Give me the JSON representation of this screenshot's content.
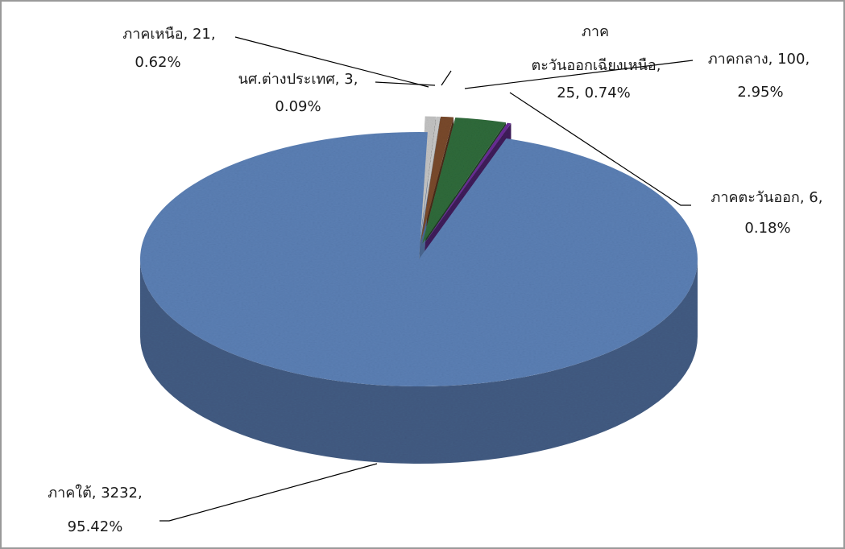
{
  "chart_data": {
    "type": "pie",
    "style": "3d-exploded",
    "title": "",
    "categories": [
      "ภาคใต้",
      "ภาคเหนือ",
      "นศ.ต่างประเทศ",
      "ภาคตะวันออกเฉียงเหนือ",
      "ภาคกลาง",
      "ภาคตะวันออก"
    ],
    "values": [
      3232,
      21,
      3,
      25,
      100,
      6
    ],
    "percentages": [
      "95.42%",
      "0.62%",
      "0.09%",
      "0.74%",
      "2.95%",
      "0.18%"
    ],
    "colors": [
      "#5b7fb4",
      "#c4c4c4",
      "#c9c9c9",
      "#7a4a2c",
      "#2f6b3b",
      "#6a2d97"
    ],
    "legend": "none",
    "data_labels": {
      "south": {
        "line1": "ภาคใต้, 3232,",
        "line2": "95.42%"
      },
      "north": {
        "line1": "ภาคเหนือ, 21,",
        "line2": "0.62%"
      },
      "foreign": {
        "line1": "นศ.ต่างประเทศ, 3,",
        "line2": "0.09%"
      },
      "northeast": {
        "line1": "ภาค",
        "line2": "ตะวันออกเฉียงเหนือ,",
        "line3": "25, 0.74%"
      },
      "central": {
        "line1": "ภาคกลาง, 100,",
        "line2": "2.95%"
      },
      "east": {
        "line1": "ภาคตะวันออก, 6,",
        "line2": "0.18%"
      }
    }
  }
}
